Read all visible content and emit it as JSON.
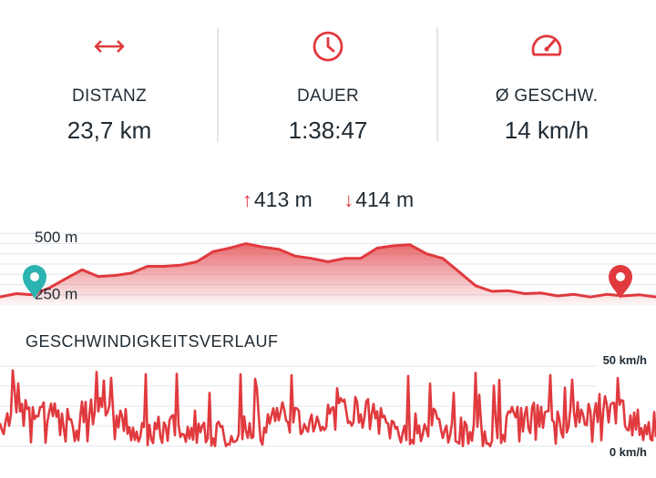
{
  "stats": {
    "distance": {
      "label": "DISTANZ",
      "value": "23,7 km"
    },
    "duration": {
      "label": "DAUER",
      "value": "1:38:47"
    },
    "speed": {
      "label": "Ø GESCHW.",
      "value": "14 km/h"
    }
  },
  "elevation_summary": {
    "ascent": "413 m",
    "descent": "414 m"
  },
  "accent_color": "#e03a3e",
  "start_marker_color": "#2bb3b1",
  "chart_data": [
    {
      "type": "area",
      "ytick_labels": [
        "500 m",
        "250 m"
      ],
      "ytick_values": [
        500,
        250
      ],
      "ylim": [
        200,
        560
      ],
      "x": [
        0,
        1,
        2,
        3,
        4,
        5,
        6,
        7,
        8,
        9,
        10,
        11,
        12,
        13,
        14,
        15,
        16,
        17,
        18,
        19,
        20,
        21,
        22,
        23,
        24,
        25,
        26,
        27,
        28,
        29,
        30,
        31,
        32,
        33,
        34,
        35,
        36,
        37,
        38,
        39,
        40
      ],
      "values": [
        240,
        245,
        250,
        270,
        320,
        350,
        330,
        325,
        345,
        365,
        375,
        370,
        395,
        430,
        455,
        465,
        460,
        440,
        420,
        400,
        395,
        400,
        410,
        445,
        465,
        460,
        430,
        400,
        350,
        280,
        265,
        258,
        255,
        248,
        245,
        242,
        240,
        242,
        245,
        240,
        240
      ],
      "grid": true
    },
    {
      "type": "line",
      "title": "GESCHWINDIGKEITSVERLAUF",
      "ytick_labels": [
        "50 km/h",
        "0 km/h"
      ],
      "ytick_values": [
        50,
        0
      ],
      "ylim": [
        0,
        55
      ],
      "grid": true
    }
  ]
}
